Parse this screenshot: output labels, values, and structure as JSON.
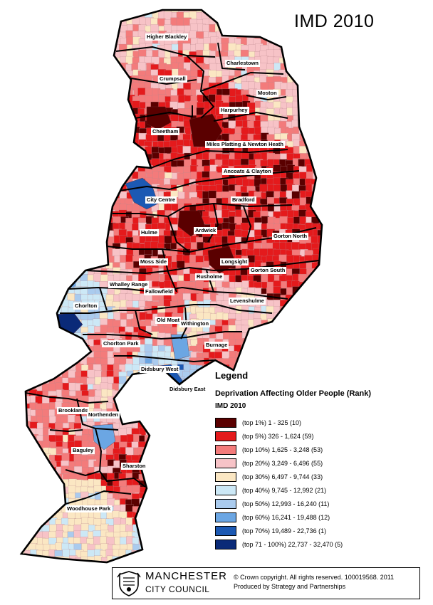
{
  "title": "IMD 2010",
  "legend": {
    "heading": "Legend",
    "subtitle": "Deprivation Affecting Older People (Rank)",
    "series": "IMD 2010",
    "items": [
      {
        "label": "(top 1%) 1 - 325 (10)",
        "color": "#5a0000"
      },
      {
        "label": "(top 5%) 326 - 1,624 (59)",
        "color": "#e41a1c"
      },
      {
        "label": "(top 10%) 1,625 - 3,248 (53)",
        "color": "#f37b7b"
      },
      {
        "label": "(top 20%) 3,249 - 6,496 (55)",
        "color": "#f7c3c7"
      },
      {
        "label": "(top 30%) 6,497 - 9,744 (33)",
        "color": "#fbe7c3"
      },
      {
        "label": "(top 40%) 9,745 - 12,992 (21)",
        "color": "#cce8f6"
      },
      {
        "label": "(top 50%) 12,993 - 16,240 (11)",
        "color": "#aacbee"
      },
      {
        "label": "(top 60%) 16,241 - 19,488 (12)",
        "color": "#6ba6e3"
      },
      {
        "label": "(top 70%) 19,489 - 22,736 (1)",
        "color": "#1c59b3"
      },
      {
        "label": "(top 71 - 100%) 22,737 - 32,470 (5)",
        "color": "#0a2a78"
      }
    ]
  },
  "wards": [
    {
      "name": "Higher Blackley",
      "dominant": 3
    },
    {
      "name": "Charlestown",
      "dominant": 3
    },
    {
      "name": "Crumpsall",
      "dominant": 2
    },
    {
      "name": "Moston",
      "dominant": 3
    },
    {
      "name": "Harpurhey",
      "dominant": 1
    },
    {
      "name": "Cheetham",
      "dominant": 1
    },
    {
      "name": "Miles Platting & Newton Heath",
      "dominant": 1
    },
    {
      "name": "Ancoats & Clayton",
      "dominant": 1
    },
    {
      "name": "City Centre",
      "dominant": 2
    },
    {
      "name": "Bradford",
      "dominant": 1
    },
    {
      "name": "Hulme",
      "dominant": 1
    },
    {
      "name": "Ardwick",
      "dominant": 1
    },
    {
      "name": "Gorton North",
      "dominant": 1
    },
    {
      "name": "Moss Side",
      "dominant": 1
    },
    {
      "name": "Longsight",
      "dominant": 1
    },
    {
      "name": "Rusholme",
      "dominant": 2
    },
    {
      "name": "Gorton South",
      "dominant": 1
    },
    {
      "name": "Whalley Range",
      "dominant": 3
    },
    {
      "name": "Fallowfield",
      "dominant": 2
    },
    {
      "name": "Levenshulme",
      "dominant": 3
    },
    {
      "name": "Chorlton",
      "dominant": 5
    },
    {
      "name": "Old Moat",
      "dominant": 2
    },
    {
      "name": "Withington",
      "dominant": 4
    },
    {
      "name": "Chorlton Park",
      "dominant": 2
    },
    {
      "name": "Burnage",
      "dominant": 2
    },
    {
      "name": "Didsbury West",
      "dominant": 5
    },
    {
      "name": "Didsbury East",
      "dominant": 6
    },
    {
      "name": "Brooklands",
      "dominant": 2
    },
    {
      "name": "Northenden",
      "dominant": 3
    },
    {
      "name": "Baguley",
      "dominant": 2
    },
    {
      "name": "Sharston",
      "dominant": 1
    },
    {
      "name": "Woodhouse Park",
      "dominant": 4
    }
  ],
  "footer": {
    "council_name": "MANCHESTER",
    "council_sub": "CITY COUNCIL",
    "copyright": "© Crown copyright. All rights reserved. 100019568. 2011",
    "credit": "Produced by Strategy and Partnerships",
    "crest_icon": "manchester-crest-icon"
  }
}
